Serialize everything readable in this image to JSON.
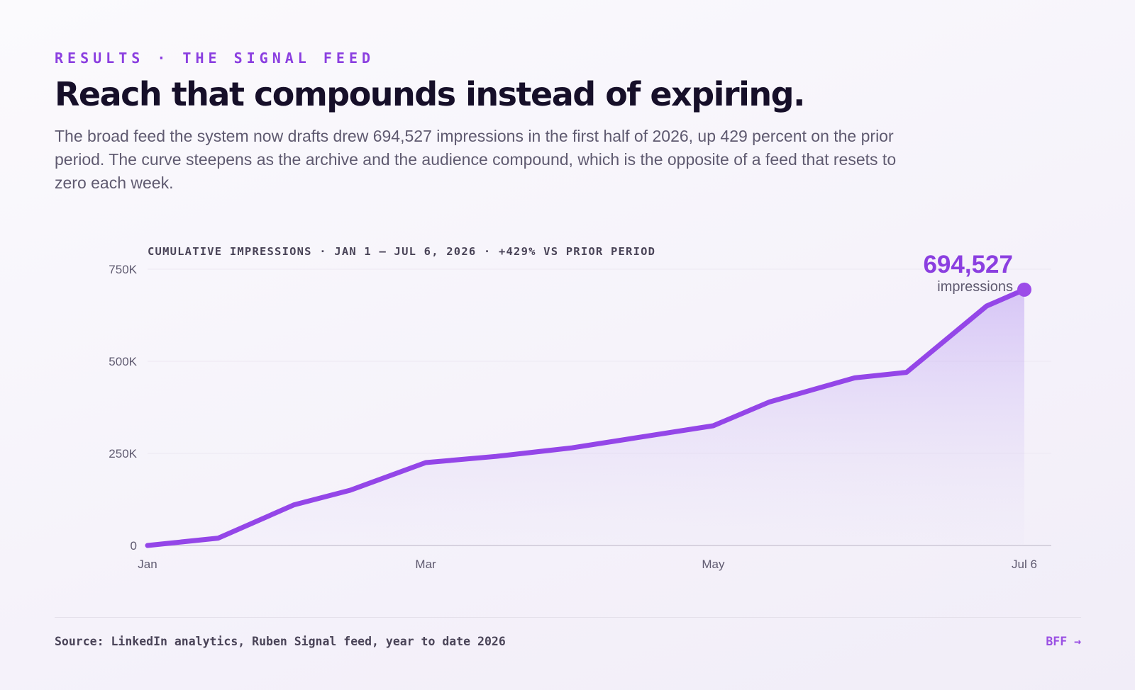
{
  "eyebrow": "RESULTS · THE SIGNAL FEED",
  "title": "Reach that compounds instead of expiring.",
  "lede": "The broad feed the system now drafts drew 694,527 impressions in the first half of 2026, up 429 percent on the prior period. The curve steepens as the archive and the audience compound, which is the opposite of a feed that resets to zero each week.",
  "chart_caption": "CUMULATIVE IMPRESSIONS · JAN 1 – JUL 6, 2026 · +429% VS PRIOR PERIOD",
  "footer": {
    "source": "Source: LinkedIn analytics, Ruben Signal feed, year to date 2026",
    "link_label": "BFF →"
  },
  "colors": {
    "accent": "#8b3fe0",
    "line": "#9446e8",
    "title": "#160f29",
    "muted": "#5f5a70"
  },
  "chart_data": {
    "type": "area",
    "x_axis_type": "date",
    "x": [
      "2026-01-01",
      "2026-01-16",
      "2026-02-01",
      "2026-02-13",
      "2026-03-01",
      "2026-03-16",
      "2026-04-01",
      "2026-04-16",
      "2026-05-01",
      "2026-05-13",
      "2026-05-31",
      "2026-06-11",
      "2026-06-28",
      "2026-07-06"
    ],
    "y": [
      0,
      20000,
      110000,
      150000,
      225000,
      242000,
      265000,
      295000,
      325000,
      390000,
      455000,
      470000,
      650000,
      694527
    ],
    "xticks": [
      {
        "date": "2026-01-01",
        "label": "Jan"
      },
      {
        "date": "2026-03-01",
        "label": "Mar"
      },
      {
        "date": "2026-05-01",
        "label": "May"
      },
      {
        "date": "2026-07-06",
        "label": "Jul 6"
      }
    ],
    "yticks": [
      {
        "value": 0,
        "label": "0"
      },
      {
        "value": 250000,
        "label": "250K"
      },
      {
        "value": 500000,
        "label": "500K"
      },
      {
        "value": 750000,
        "label": "750K"
      }
    ],
    "ylim": [
      0,
      750000
    ],
    "grid": true,
    "annotation": {
      "value": "694,527",
      "label": "impressions",
      "date": "2026-07-06"
    }
  }
}
